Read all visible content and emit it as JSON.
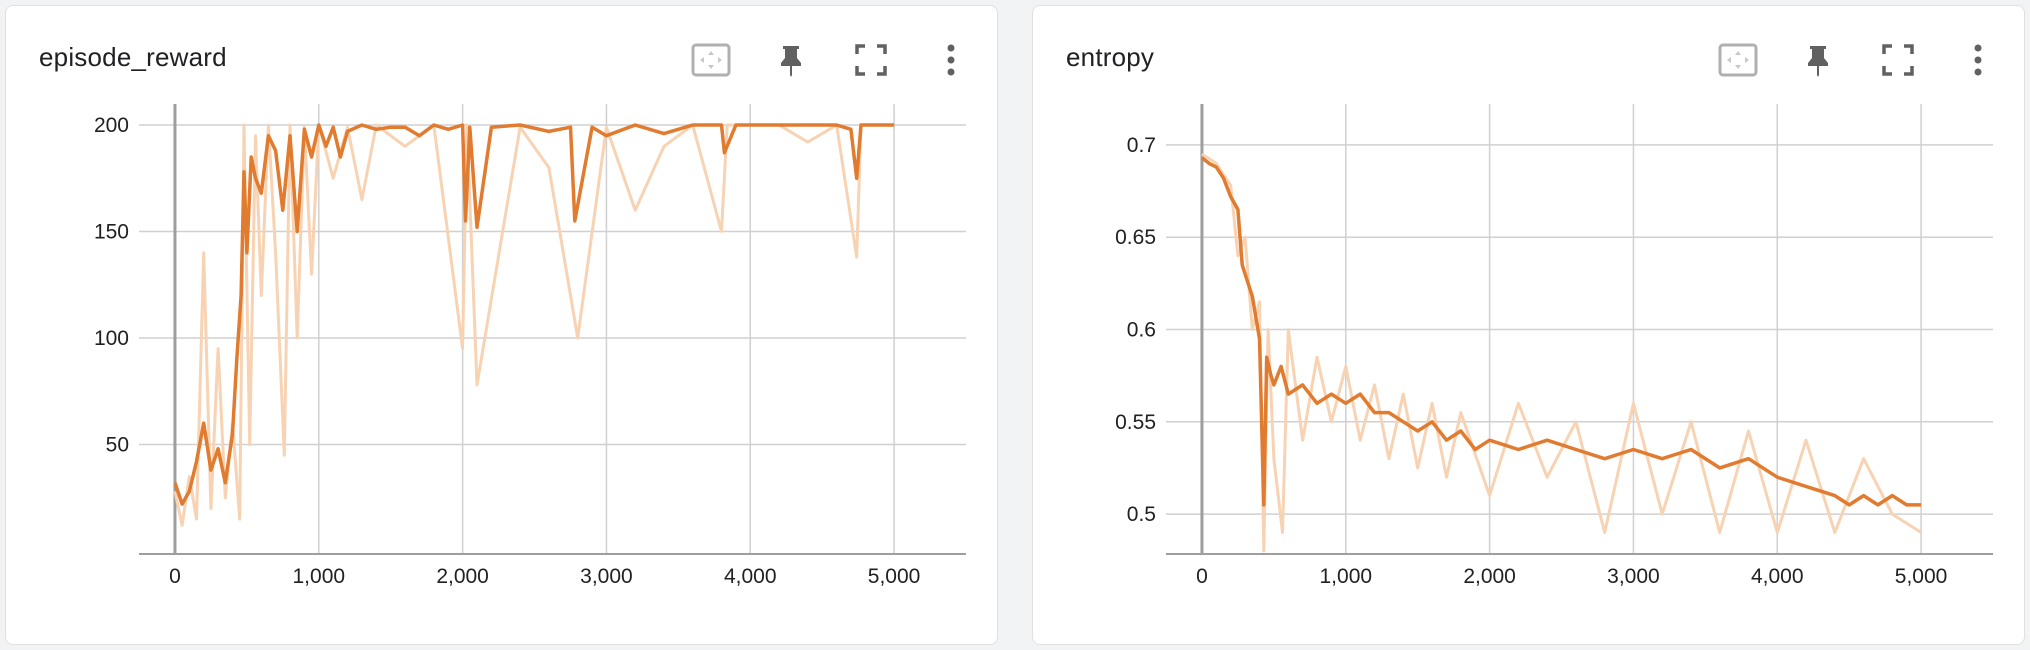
{
  "colors": {
    "line": "#e07b2f",
    "raw": "#f7d3b3",
    "grid": "#d0d0d0",
    "zero": "#9e9e9e"
  },
  "toolbar_icons": [
    "fit-domain-icon",
    "pin-icon",
    "fullscreen-icon",
    "more-vert-icon"
  ],
  "chart_data": [
    {
      "type": "line",
      "title": "episode_reward",
      "xlim": [
        -250,
        5500
      ],
      "ylim": [
        0,
        208
      ],
      "x_ticks": [
        0,
        1000,
        2000,
        3000,
        4000,
        5000
      ],
      "x_tick_labels": [
        "0",
        "1,000",
        "2,000",
        "3,000",
        "4,000",
        "5,000"
      ],
      "y_ticks": [
        50,
        100,
        150,
        200
      ],
      "y_tick_labels": [
        "50",
        "100",
        "150",
        "200"
      ],
      "grid": true,
      "series": [
        {
          "smoothed": true,
          "x": [
            0,
            50,
            100,
            150,
            200,
            250,
            300,
            350,
            400,
            430,
            460,
            480,
            500,
            530,
            560,
            600,
            650,
            700,
            750,
            800,
            850,
            900,
            950,
            1000,
            1050,
            1100,
            1150,
            1200,
            1300,
            1400,
            1500,
            1600,
            1700,
            1800,
            1900,
            2000,
            2020,
            2050,
            2100,
            2200,
            2400,
            2600,
            2750,
            2780,
            2900,
            3000,
            3200,
            3400,
            3600,
            3800,
            3820,
            3900,
            4000,
            4200,
            4400,
            4600,
            4700,
            4740,
            4770,
            4800,
            4900,
            5000
          ],
          "y": [
            32,
            22,
            28,
            42,
            60,
            38,
            48,
            32,
            55,
            90,
            120,
            178,
            140,
            185,
            175,
            168,
            195,
            188,
            160,
            195,
            150,
            198,
            185,
            200,
            190,
            199,
            185,
            197,
            200,
            198,
            199,
            199,
            195,
            200,
            198,
            200,
            155,
            199,
            152,
            199,
            200,
            197,
            199,
            155,
            199,
            195,
            200,
            196,
            200,
            200,
            187,
            200,
            200,
            200,
            200,
            200,
            198,
            175,
            200,
            200,
            200,
            200
          ]
        },
        {
          "smoothed": false,
          "x": [
            0,
            50,
            100,
            150,
            200,
            250,
            300,
            350,
            400,
            450,
            480,
            520,
            560,
            600,
            650,
            700,
            760,
            800,
            850,
            900,
            950,
            1000,
            1100,
            1200,
            1300,
            1400,
            1600,
            1800,
            2000,
            2030,
            2100,
            2400,
            2600,
            2800,
            3000,
            3200,
            3400,
            3600,
            3800,
            3840,
            4000,
            4200,
            4400,
            4600,
            4740,
            4770,
            4800,
            4900,
            5000
          ],
          "y": [
            28,
            12,
            35,
            15,
            140,
            20,
            95,
            25,
            60,
            15,
            200,
            50,
            195,
            120,
            200,
            140,
            45,
            200,
            100,
            199,
            130,
            200,
            175,
            199,
            165,
            200,
            190,
            200,
            95,
            200,
            78,
            199,
            180,
            100,
            199,
            160,
            190,
            200,
            150,
            200,
            200,
            200,
            192,
            200,
            138,
            200,
            200,
            200,
            200
          ]
        }
      ]
    },
    {
      "type": "line",
      "title": "entropy",
      "xlim": [
        -250,
        5500
      ],
      "ylim": [
        0.48,
        0.72
      ],
      "x_ticks": [
        0,
        1000,
        2000,
        3000,
        4000,
        5000
      ],
      "x_tick_labels": [
        "0",
        "1,000",
        "2,000",
        "3,000",
        "4,000",
        "5,000"
      ],
      "y_ticks": [
        0.5,
        0.55,
        0.6,
        0.65,
        0.7
      ],
      "y_tick_labels": [
        "0.5",
        "0.55",
        "0.6",
        "0.65",
        "0.7"
      ],
      "grid": true,
      "series": [
        {
          "smoothed": true,
          "x": [
            0,
            50,
            100,
            150,
            200,
            250,
            280,
            300,
            350,
            400,
            430,
            450,
            480,
            500,
            550,
            600,
            700,
            800,
            900,
            1000,
            1100,
            1200,
            1300,
            1400,
            1500,
            1600,
            1700,
            1800,
            1900,
            2000,
            2200,
            2400,
            2600,
            2800,
            3000,
            3200,
            3400,
            3600,
            3800,
            4000,
            4200,
            4400,
            4500,
            4600,
            4700,
            4800,
            4900,
            5000
          ],
          "y": [
            0.693,
            0.69,
            0.688,
            0.682,
            0.672,
            0.665,
            0.635,
            0.63,
            0.618,
            0.595,
            0.505,
            0.585,
            0.575,
            0.57,
            0.58,
            0.565,
            0.57,
            0.56,
            0.565,
            0.56,
            0.565,
            0.555,
            0.555,
            0.55,
            0.545,
            0.55,
            0.54,
            0.545,
            0.535,
            0.54,
            0.535,
            0.54,
            0.535,
            0.53,
            0.535,
            0.53,
            0.535,
            0.525,
            0.53,
            0.52,
            0.515,
            0.51,
            0.505,
            0.51,
            0.505,
            0.51,
            0.505,
            0.505
          ]
        },
        {
          "smoothed": false,
          "x": [
            0,
            100,
            200,
            250,
            300,
            350,
            400,
            430,
            460,
            500,
            560,
            600,
            700,
            800,
            900,
            1000,
            1100,
            1200,
            1300,
            1400,
            1500,
            1600,
            1700,
            1800,
            2000,
            2200,
            2400,
            2600,
            2800,
            3000,
            3200,
            3400,
            3600,
            3800,
            4000,
            4200,
            4400,
            4600,
            4800,
            5000
          ],
          "y": [
            0.695,
            0.69,
            0.678,
            0.64,
            0.65,
            0.6,
            0.615,
            0.48,
            0.6,
            0.53,
            0.49,
            0.6,
            0.54,
            0.585,
            0.55,
            0.58,
            0.54,
            0.57,
            0.53,
            0.565,
            0.525,
            0.56,
            0.52,
            0.555,
            0.51,
            0.56,
            0.52,
            0.55,
            0.49,
            0.56,
            0.5,
            0.55,
            0.49,
            0.545,
            0.49,
            0.54,
            0.49,
            0.53,
            0.5,
            0.49
          ]
        }
      ]
    }
  ]
}
